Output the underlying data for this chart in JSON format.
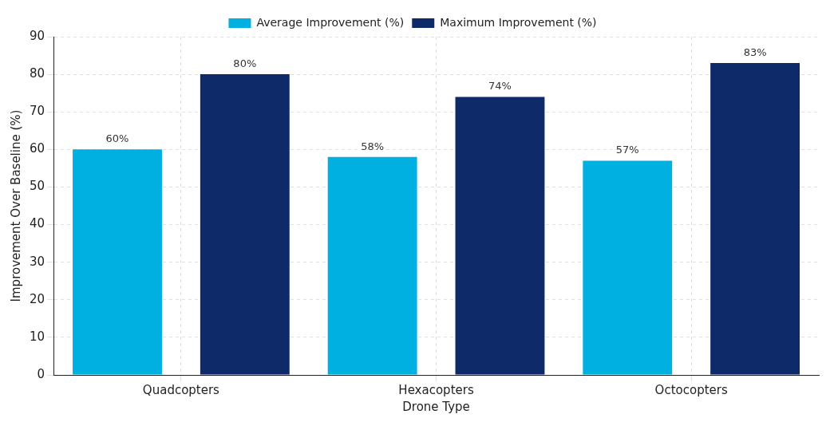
{
  "chart_data": {
    "type": "bar",
    "xlabel": "Drone Type",
    "ylabel": "Improvement Over Baseline (%)",
    "categories": [
      "Quadcopters",
      "Hexacopters",
      "Octocopters"
    ],
    "series": [
      {
        "name": "Average Improvement (%)",
        "color": "#00b0e0",
        "values": [
          60,
          58,
          57
        ],
        "value_labels": [
          "60%",
          "58%",
          "57%"
        ]
      },
      {
        "name": "Maximum Improvement (%)",
        "color": "#0f2a69",
        "values": [
          80,
          74,
          83
        ],
        "value_labels": [
          "80%",
          "74%",
          "83%"
        ]
      }
    ],
    "ylim": [
      0,
      90
    ],
    "yticks": [
      0,
      10,
      20,
      30,
      40,
      50,
      60,
      70,
      80,
      90
    ],
    "grid": true,
    "legend": "top"
  }
}
